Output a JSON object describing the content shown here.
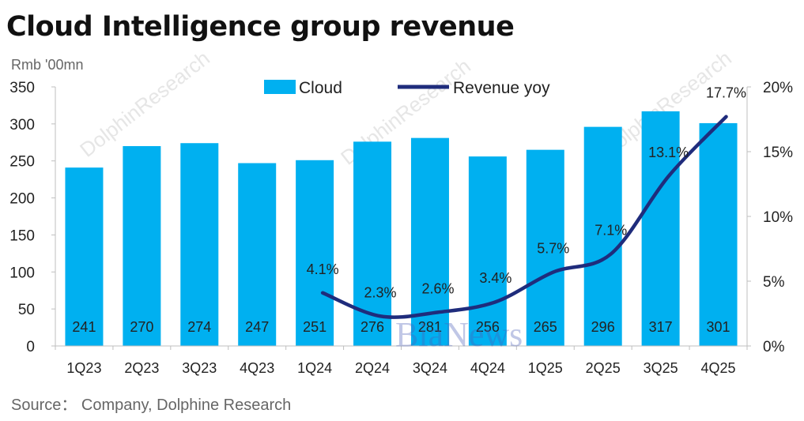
{
  "title": "Cloud Intelligence group revenue",
  "unit_label": "Rmb '00mn",
  "source": "Source： Company, Dolphine Research",
  "watermark": {
    "brand": "DolphinResearch",
    "overlay": "BiaNews"
  },
  "colors": {
    "bar": "#00b0f0",
    "line": "#1f2c7c"
  },
  "chart_data": {
    "type": "bar",
    "categories": [
      "1Q23",
      "2Q23",
      "3Q23",
      "4Q23",
      "1Q24",
      "2Q24",
      "3Q24",
      "4Q24",
      "1Q25",
      "2Q25",
      "3Q25",
      "4Q25"
    ],
    "series": [
      {
        "name": "Cloud",
        "type": "bar",
        "axis": "left",
        "values": [
          241,
          270,
          274,
          247,
          251,
          276,
          281,
          256,
          265,
          296,
          317,
          301
        ]
      },
      {
        "name": "Revenue yoy",
        "type": "line",
        "axis": "right",
        "values": [
          null,
          null,
          null,
          null,
          4.1,
          2.3,
          2.6,
          3.4,
          5.7,
          7.1,
          13.1,
          17.7
        ],
        "labels": [
          "",
          "",
          "",
          "",
          "4.1%",
          "2.3%",
          "2.6%",
          "3.4%",
          "5.7%",
          "7.1%",
          "13.1%",
          "17.7%"
        ]
      }
    ],
    "y_left": {
      "range": [
        0,
        350
      ],
      "ticks": [
        "0",
        "50",
        "100",
        "150",
        "200",
        "250",
        "300",
        "350"
      ]
    },
    "y_right": {
      "range": [
        0,
        20
      ],
      "ticks": [
        "0%",
        "5%",
        "10%",
        "15%",
        "20%"
      ]
    },
    "legend_position": "top-center",
    "grid": false
  }
}
